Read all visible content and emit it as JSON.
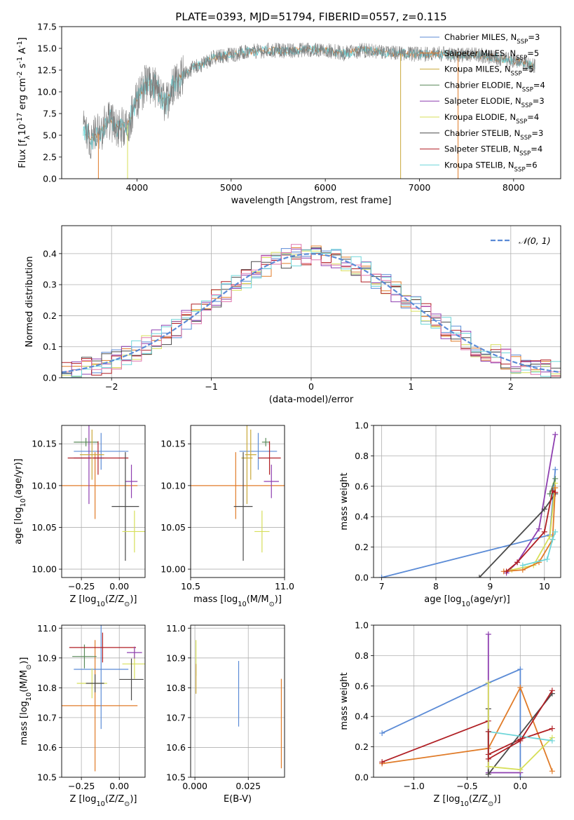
{
  "figure_title": "PLATE=0393, MJD=51794, FIBERID=0557, z=0.115",
  "series_names": [
    "Chabrier MILES, N$_{SSP}$=3",
    "Salpeter MILES, N$_{SSP}$=5",
    "Kroupa MILES, N$_{SSP}$=5",
    "Chabrier ELODIE, N$_{SSP}$=4",
    "Salpeter ELODIE, N$_{SSP}$=3",
    "Kroupa ELODIE, N$_{SSP}$=4",
    "Chabrier STELIB, N$_{SSP}$=3",
    "Salpeter STELIB, N$_{SSP}$=4",
    "Kroupa STELIB, N$_{SSP}$=6"
  ],
  "colors": {
    "spectrum": "#808080",
    "series": [
      "#5b8bd6",
      "#e07b28",
      "#c9a83a",
      "#5a8a5a",
      "#8e3fb0",
      "#d7df5a",
      "#4a4a4a",
      "#b01f24",
      "#6ed6d9"
    ],
    "gaussian": "#5b8bd6",
    "hist_series": [
      "#5b8bd6",
      "#e07b28",
      "#d7df5a",
      "#8e3fb0",
      "#4a4a4a",
      "#b01f24",
      "#6ed6d9",
      "#e078b0"
    ]
  },
  "chart_data": [
    {
      "id": "spectrum",
      "type": "line",
      "title": "PLATE=0393, MJD=51794, FIBERID=0557, z=0.115",
      "xlabel": "wavelength [Angstrom, rest frame]",
      "ylabel": "Flux [f$_\\lambda$10$^{-17}$ erg cm$^{-2}$ s$^{-1}$ A$^{-1}$]",
      "xlim": [
        3200,
        8500
      ],
      "ylim": [
        0,
        17.5
      ],
      "xticks": [
        4000,
        5000,
        6000,
        7000,
        8000
      ],
      "yticks": [
        0.0,
        2.5,
        5.0,
        7.5,
        10.0,
        12.5,
        15.0,
        17.5
      ],
      "envelope": {
        "x": [
          3430,
          3500,
          3600,
          3700,
          3800,
          3900,
          4000,
          4100,
          4200,
          4300,
          4400,
          4500,
          4600,
          4700,
          4800,
          5000,
          5200,
          5400,
          5600,
          5800,
          6000,
          6200,
          6400,
          6600,
          6800,
          7000,
          7200,
          7400,
          7600,
          7800,
          8000,
          8200
        ],
        "y": [
          5.5,
          4.6,
          5.2,
          6.8,
          5.8,
          6.2,
          9.0,
          11.2,
          10.5,
          8.5,
          11.2,
          12.0,
          12.8,
          13.2,
          13.9,
          14.3,
          14.6,
          14.8,
          14.7,
          14.9,
          14.8,
          14.4,
          14.8,
          14.5,
          14.4,
          14.3,
          14.4,
          14.2,
          14.3,
          13.9,
          13.6,
          13.0
        ]
      },
      "legend_loc": "upper right"
    },
    {
      "id": "residuals",
      "type": "bar",
      "xlabel": "(data-model)/error",
      "ylabel": "Normed distribution",
      "xlim": [
        -2.5,
        2.5
      ],
      "ylim": [
        0,
        0.49
      ],
      "xticks": [
        -2,
        -1,
        0,
        1,
        2
      ],
      "yticks": [
        0.0,
        0.1,
        0.2,
        0.3,
        0.4
      ],
      "reference_curve": "$\\mathcal{N}(0,1)$",
      "legend_loc": "upper right"
    },
    {
      "id": "age_vs_Z",
      "type": "scatter",
      "xlabel": "Z [log$_{10}$($Z/Z_\\odot$)]",
      "ylabel": "age  [log$_{10}$($age/yr$)]",
      "xlim": [
        -0.38,
        0.17
      ],
      "ylim": [
        9.99,
        10.172
      ],
      "xticks": [
        -0.25,
        0.0
      ],
      "yticks": [
        10.0,
        10.05,
        10.1,
        10.15
      ],
      "points": [
        {
          "x": -0.16,
          "y": 10.1,
          "xerr": 0.28,
          "yerr": 0.04,
          "c": 1
        },
        {
          "x": -0.12,
          "y": 10.141,
          "xerr": 0.18,
          "yerr": 0.022,
          "c": 0
        },
        {
          "x": -0.22,
          "y": 10.152,
          "xerr": 0.08,
          "yerr": 0.005,
          "c": 3
        },
        {
          "x": -0.2,
          "y": 10.133,
          "xerr": 0.1,
          "yerr": 0.055,
          "c": 4
        },
        {
          "x": -0.14,
          "y": 10.133,
          "xerr": 0.2,
          "yerr": 0.02,
          "c": 7
        },
        {
          "x": -0.18,
          "y": 10.137,
          "xerr": 0.08,
          "yerr": 0.03,
          "c": 2
        },
        {
          "x": 0.08,
          "y": 10.105,
          "xerr": 0.04,
          "yerr": 0.02,
          "c": 4
        },
        {
          "x": 0.04,
          "y": 10.075,
          "xerr": 0.09,
          "yerr": 0.065,
          "c": 6
        },
        {
          "x": 0.1,
          "y": 10.045,
          "xerr": 0.08,
          "yerr": 0.025,
          "c": 5
        }
      ]
    },
    {
      "id": "age_vs_mass",
      "type": "scatter",
      "xlabel": "mass [log$_{10}$($M/M_\\odot$)]",
      "ylabel": "",
      "xlim": [
        10.5,
        11.0
      ],
      "ylim": [
        9.99,
        10.172
      ],
      "xticks": [
        10.5,
        11.0
      ],
      "yticks": [
        10.0,
        10.05,
        10.1,
        10.15
      ],
      "points": [
        {
          "x": 10.74,
          "y": 10.1,
          "xerr": 0.28,
          "yerr": 0.04,
          "c": 1
        },
        {
          "x": 10.86,
          "y": 10.141,
          "xerr": 0.1,
          "yerr": 0.022,
          "c": 0
        },
        {
          "x": 10.9,
          "y": 10.152,
          "xerr": 0.02,
          "yerr": 0.005,
          "c": 3
        },
        {
          "x": 10.8,
          "y": 10.133,
          "xerr": 0.03,
          "yerr": 0.055,
          "c": 2
        },
        {
          "x": 10.92,
          "y": 10.133,
          "xerr": 0.06,
          "yerr": 0.02,
          "c": 7
        },
        {
          "x": 10.82,
          "y": 10.137,
          "xerr": 0.03,
          "yerr": 0.03,
          "c": 2
        },
        {
          "x": 10.93,
          "y": 10.105,
          "xerr": 0.04,
          "yerr": 0.02,
          "c": 4
        },
        {
          "x": 10.78,
          "y": 10.075,
          "xerr": 0.05,
          "yerr": 0.065,
          "c": 6
        },
        {
          "x": 10.88,
          "y": 10.045,
          "xerr": 0.04,
          "yerr": 0.025,
          "c": 5
        }
      ]
    },
    {
      "id": "weight_vs_age",
      "type": "line",
      "xlabel": "age  [log$_{10}$($age/yr$)]",
      "ylabel": "mass weight",
      "xlim": [
        6.85,
        10.3
      ],
      "ylim": [
        0,
        1.0
      ],
      "xticks": [
        7,
        8,
        9,
        10
      ],
      "yticks": [
        0.0,
        0.2,
        0.4,
        0.6,
        0.8,
        1.0
      ],
      "series": [
        {
          "c": 0,
          "x": [
            7.0,
            10.1,
            10.2
          ],
          "y": [
            0.0,
            0.28,
            0.71
          ]
        },
        {
          "c": 4,
          "x": [
            9.3,
            9.5,
            9.9,
            10.2
          ],
          "y": [
            0.03,
            0.1,
            0.32,
            0.94
          ]
        },
        {
          "c": 6,
          "x": [
            8.8,
            10.0,
            10.2
          ],
          "y": [
            0.0,
            0.45,
            0.55
          ]
        },
        {
          "c": 5,
          "x": [
            9.4,
            9.8,
            10.1,
            10.2
          ],
          "y": [
            0.05,
            0.08,
            0.27,
            0.62
          ]
        },
        {
          "c": 1,
          "x": [
            9.25,
            9.6,
            9.9,
            10.15,
            10.2
          ],
          "y": [
            0.04,
            0.05,
            0.1,
            0.25,
            0.59
          ]
        },
        {
          "c": 7,
          "x": [
            9.3,
            9.5,
            10.0,
            10.15,
            10.2
          ],
          "y": [
            0.04,
            0.1,
            0.3,
            0.57,
            0.56
          ]
        },
        {
          "c": 8,
          "x": [
            9.6,
            10.05,
            10.15,
            10.2
          ],
          "y": [
            0.08,
            0.12,
            0.25,
            0.3
          ]
        },
        {
          "c": 3,
          "x": [
            10.1,
            10.2
          ],
          "y": [
            0.55,
            0.65
          ]
        }
      ]
    },
    {
      "id": "mass_vs_Z",
      "type": "scatter",
      "xlabel": "Z [log$_{10}$($Z/Z_\\odot$)]",
      "ylabel": "mass [log$_{10}$($M/M_\\odot$)]",
      "xlim": [
        -0.38,
        0.17
      ],
      "ylim": [
        10.5,
        11.01
      ],
      "xticks": [
        -0.25,
        0.0
      ],
      "yticks": [
        10.5,
        10.6,
        10.7,
        10.8,
        10.9,
        11.0
      ],
      "points": [
        {
          "x": -0.16,
          "y": 10.74,
          "xerr": 0.28,
          "yerr": 0.22,
          "c": 1
        },
        {
          "x": -0.12,
          "y": 10.862,
          "xerr": 0.18,
          "yerr": 0.2,
          "c": 0
        },
        {
          "x": -0.23,
          "y": 10.905,
          "xerr": 0.08,
          "yerr": 0.04,
          "c": 3
        },
        {
          "x": -0.18,
          "y": 10.815,
          "xerr": 0.1,
          "yerr": 0.05,
          "c": 5
        },
        {
          "x": -0.16,
          "y": 10.815,
          "xerr": 0.06,
          "yerr": 0.03,
          "c": 6
        },
        {
          "x": -0.11,
          "y": 10.935,
          "xerr": 0.22,
          "yerr": 0.05,
          "c": 7
        },
        {
          "x": 0.1,
          "y": 10.88,
          "xerr": 0.08,
          "yerr": 0.05,
          "c": 5
        },
        {
          "x": 0.1,
          "y": 10.918,
          "xerr": 0.05,
          "yerr": 0.02,
          "c": 4
        },
        {
          "x": 0.08,
          "y": 10.828,
          "xerr": 0.08,
          "yerr": 0.07,
          "c": 6
        }
      ]
    },
    {
      "id": "mass_vs_ebv",
      "type": "scatter",
      "xlabel": "E(B-V)",
      "ylabel": "",
      "xlim": [
        -0.002,
        0.042
      ],
      "ylim": [
        10.5,
        11.01
      ],
      "xticks": [
        0.0,
        0.025
      ],
      "yticks": [
        10.5,
        10.6,
        10.7,
        10.8,
        10.9,
        11.0
      ],
      "points": [
        {
          "x": 0.0005,
          "y": 10.9,
          "xerr": 0,
          "yerr": 0.06,
          "c": 5
        },
        {
          "x": 0.0005,
          "y": 10.83,
          "xerr": 0,
          "yerr": 0.05,
          "c": 2
        },
        {
          "x": 0.0205,
          "y": 10.78,
          "xerr": 0,
          "yerr": 0.11,
          "c": 0
        },
        {
          "x": 0.0405,
          "y": 10.68,
          "xerr": 0,
          "yerr": 0.15,
          "c": 1
        }
      ]
    },
    {
      "id": "weight_vs_Z",
      "type": "line",
      "xlabel": "Z [log$_{10}$($Z/Z_\\odot$)]",
      "ylabel": "mass weight",
      "xlim": [
        -1.38,
        0.38
      ],
      "ylim": [
        0,
        1.0
      ],
      "xticks": [
        -1.0,
        -0.5,
        0.0
      ],
      "yticks": [
        0.0,
        0.2,
        0.4,
        0.6,
        0.8,
        1.0
      ],
      "series": [
        {
          "c": 0,
          "x": [
            -1.3,
            -0.3,
            0.0,
            0.0
          ],
          "y": [
            0.29,
            0.62,
            0.71,
            0.0
          ]
        },
        {
          "c": 1,
          "x": [
            -1.3,
            -0.3,
            0.0,
            0.3
          ],
          "y": [
            0.09,
            0.19,
            0.59,
            0.04
          ]
        },
        {
          "c": 7,
          "x": [
            -1.3,
            -0.3,
            -0.3,
            0.0,
            0.3
          ],
          "y": [
            0.1,
            0.37,
            0.15,
            0.25,
            0.32
          ]
        },
        {
          "c": 4,
          "x": [
            -0.3,
            -0.3,
            0.0
          ],
          "y": [
            0.94,
            0.03,
            0.03
          ]
        },
        {
          "c": 6,
          "x": [
            -0.3,
            -0.3,
            0.3
          ],
          "y": [
            0.45,
            0.02,
            0.55
          ]
        },
        {
          "c": 5,
          "x": [
            -0.3,
            -0.3,
            0.0,
            0.3
          ],
          "y": [
            0.62,
            0.07,
            0.05,
            0.26
          ]
        },
        {
          "c": 8,
          "x": [
            -0.3,
            -0.3,
            0.3
          ],
          "y": [
            0.12,
            0.3,
            0.24
          ]
        },
        {
          "c": 7,
          "x": [
            -0.3,
            -0.3,
            0.0,
            0.3
          ],
          "y": [
            0.3,
            0.12,
            0.24,
            0.57
          ]
        }
      ]
    }
  ]
}
